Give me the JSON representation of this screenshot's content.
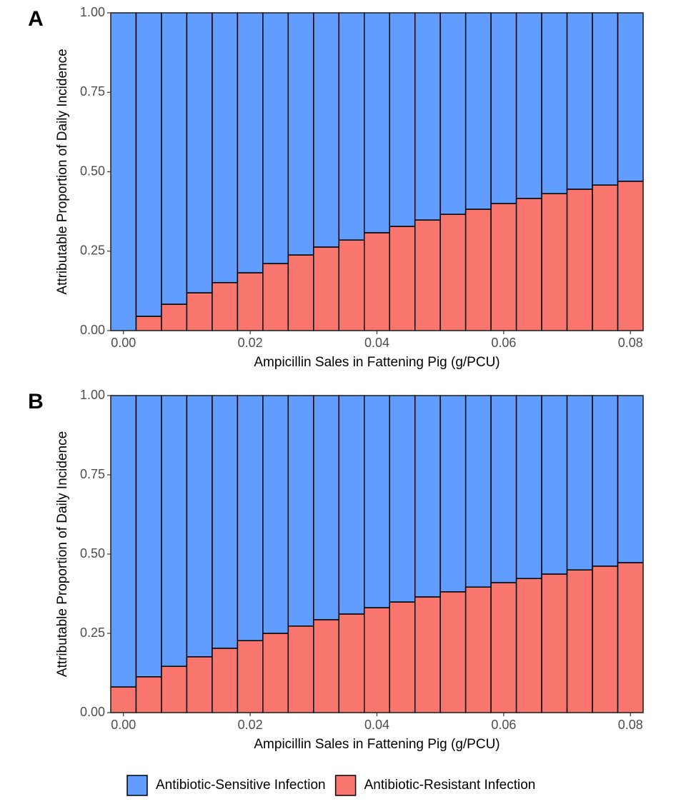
{
  "chart_data": [
    {
      "type": "bar",
      "stacked": true,
      "label": "A",
      "xlabel": "Ampicillin Sales in Fattening Pig (g/PCU)",
      "ylabel": "Attributable Proportion of Daily Incidence",
      "x": [
        0,
        0.004,
        0.008,
        0.012,
        0.016,
        0.02,
        0.024,
        0.028,
        0.032,
        0.036,
        0.04,
        0.044,
        0.048,
        0.052,
        0.056,
        0.06,
        0.064,
        0.068,
        0.072,
        0.076,
        0.08
      ],
      "series": [
        {
          "name": "Antibiotic-Sensitive Infection",
          "color": "#619CFF",
          "values": [
            1,
            0.955,
            0.917,
            0.881,
            0.849,
            0.818,
            0.789,
            0.762,
            0.737,
            0.715,
            0.692,
            0.672,
            0.652,
            0.634,
            0.618,
            0.6,
            0.584,
            0.569,
            0.555,
            0.542,
            0.53
          ]
        },
        {
          "name": "Antibiotic-Resistant Infection",
          "color": "#F8766D",
          "values": [
            0,
            0.045,
            0.083,
            0.119,
            0.151,
            0.182,
            0.211,
            0.238,
            0.263,
            0.285,
            0.308,
            0.328,
            0.348,
            0.366,
            0.382,
            0.4,
            0.416,
            0.431,
            0.445,
            0.458,
            0.47
          ]
        }
      ],
      "xlim": [
        -0.002,
        0.082
      ],
      "xticks": [
        {
          "value": 0,
          "label": "0.00"
        },
        0.02,
        0.04,
        0.06,
        0.08
      ],
      "ylim": [
        0,
        1
      ],
      "yticks": [
        {
          "value": 0,
          "label": "0.00"
        },
        0.25,
        {
          "value": 0.5,
          "label": "0.50"
        },
        0.75,
        {
          "value": 1,
          "label": "1.00"
        }
      ]
    },
    {
      "type": "bar",
      "stacked": true,
      "label": "B",
      "xlabel": "Ampicillin Sales in Fattening Pig (g/PCU)",
      "ylabel": "Attributable Proportion of Daily Incidence",
      "x": [
        0,
        0.004,
        0.008,
        0.012,
        0.016,
        0.02,
        0.024,
        0.028,
        0.032,
        0.036,
        0.04,
        0.044,
        0.048,
        0.052,
        0.056,
        0.06,
        0.064,
        0.068,
        0.072,
        0.076,
        0.08
      ],
      "series": [
        {
          "name": "Antibiotic-Sensitive Infection",
          "color": "#619CFF",
          "values": [
            0.919,
            0.887,
            0.854,
            0.824,
            0.797,
            0.773,
            0.75,
            0.727,
            0.707,
            0.689,
            0.669,
            0.651,
            0.635,
            0.619,
            0.604,
            0.59,
            0.577,
            0.563,
            0.55,
            0.538,
            0.527
          ]
        },
        {
          "name": "Antibiotic-Resistant Infection",
          "color": "#F8766D",
          "values": [
            0.081,
            0.113,
            0.146,
            0.176,
            0.203,
            0.227,
            0.25,
            0.273,
            0.293,
            0.311,
            0.331,
            0.349,
            0.365,
            0.381,
            0.396,
            0.41,
            0.423,
            0.437,
            0.45,
            0.462,
            0.473
          ]
        }
      ],
      "xlim": [
        -0.002,
        0.082
      ],
      "xticks": [
        {
          "value": 0,
          "label": "0.00"
        },
        0.02,
        0.04,
        0.06,
        0.08
      ],
      "ylim": [
        0,
        1
      ],
      "yticks": [
        {
          "value": 0,
          "label": "0.00"
        },
        0.25,
        {
          "value": 0.5,
          "label": "0.50"
        },
        0.75,
        {
          "value": 1,
          "label": "1.00"
        }
      ]
    }
  ]
}
